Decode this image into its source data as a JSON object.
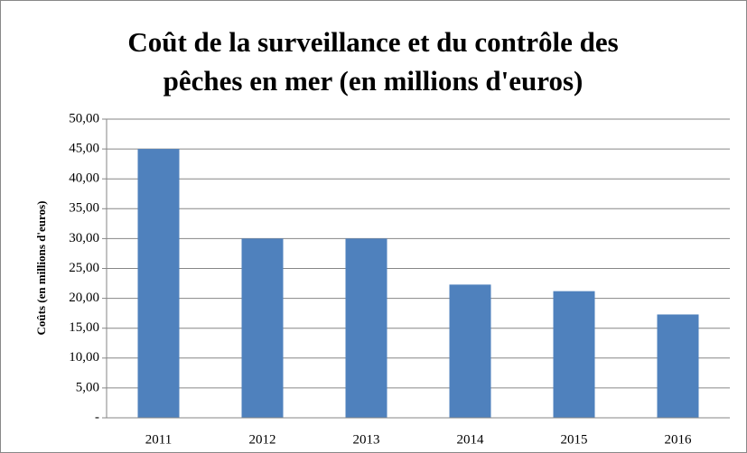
{
  "chart_data": {
    "type": "bar",
    "title": [
      "Coût de la surveillance et du contrôle des",
      "pêches en mer (en millions d'euros)"
    ],
    "y_label": "Coûts (en millions d'euros)",
    "categories": [
      "2011",
      "2012",
      "2013",
      "2014",
      "2015",
      "2016"
    ],
    "values": [
      45,
      30,
      30,
      22.3,
      21.2,
      17.3
    ],
    "color": "#4f81bd",
    "ylim": [
      0,
      50
    ],
    "yticks": [
      {
        "value": 0,
        "label": "-"
      },
      {
        "value": 5,
        "label": "5,00"
      },
      {
        "value": 10,
        "label": "10,00"
      },
      {
        "value": 15,
        "label": "15,00"
      },
      {
        "value": 20,
        "label": "20,00"
      },
      {
        "value": 25,
        "label": "25,00"
      },
      {
        "value": 30,
        "label": "30,00"
      },
      {
        "value": 35,
        "label": "35,00"
      },
      {
        "value": 40,
        "label": "40,00"
      },
      {
        "value": 45,
        "label": "45,00"
      },
      {
        "value": 50,
        "label": "50,00"
      }
    ],
    "grid": true
  }
}
